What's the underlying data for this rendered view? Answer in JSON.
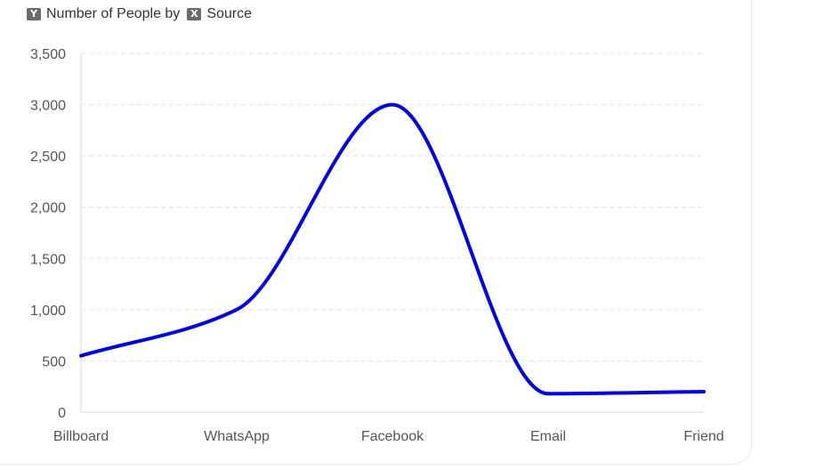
{
  "legend": {
    "y_badge": "Y",
    "y_text": "Number of People by",
    "x_badge": "X",
    "x_text": "Source"
  },
  "colors": {
    "line": "#0000ee",
    "grid": "#e3e3e3",
    "axis": "#d9d9d9"
  },
  "chart_data": {
    "type": "line",
    "categories": [
      "Billboard",
      "WhatsApp",
      "Facebook",
      "Email",
      "Friend"
    ],
    "series": [
      {
        "values": [
          550,
          1000,
          3000,
          180,
          200
        ]
      }
    ],
    "ylim": [
      0,
      3500
    ],
    "yticks": [
      0,
      500,
      1000,
      1500,
      2000,
      2500,
      3000,
      3500
    ],
    "ytick_labels": [
      "0",
      "500",
      "1,000",
      "1,500",
      "2,000",
      "2,500",
      "3,000",
      "3,500"
    ],
    "grid": true,
    "curve": "smooth"
  }
}
